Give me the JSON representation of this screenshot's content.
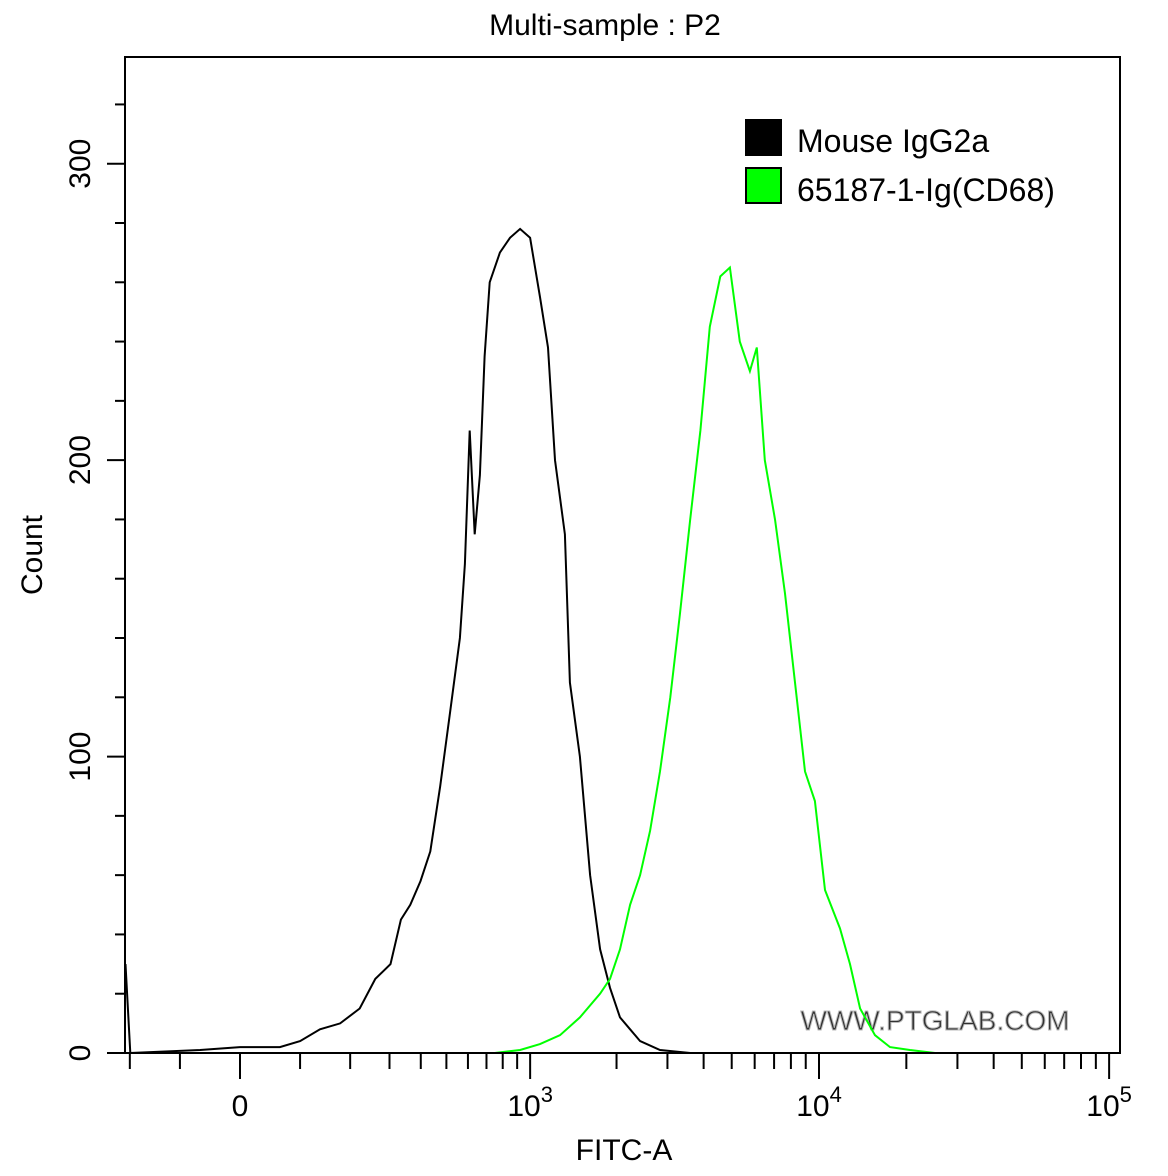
{
  "chart_data": {
    "type": "line",
    "title": "Multi-sample : P2",
    "xlabel": "FITC-A",
    "ylabel": "Count",
    "x_scale": "biexponential",
    "xlim": [
      -210,
      100000
    ],
    "ylim": [
      0,
      336
    ],
    "grid": false,
    "legend_position": "top-right",
    "x_ticks": [
      {
        "value": 0,
        "label": "0",
        "sup": ""
      },
      {
        "value": 1000,
        "label": "10",
        "sup": "3"
      },
      {
        "value": 10000,
        "label": "10",
        "sup": "4"
      },
      {
        "value": 100000,
        "label": "10",
        "sup": "5"
      }
    ],
    "x_minor_ticks": [
      -200,
      -100,
      100,
      200,
      300,
      400,
      500,
      600,
      700,
      800,
      900,
      2000,
      3000,
      4000,
      5000,
      6000,
      7000,
      8000,
      9000,
      20000,
      30000,
      40000,
      50000,
      60000,
      70000,
      80000,
      90000
    ],
    "y_ticks": [
      0,
      100,
      200,
      300
    ],
    "y_minor_ticks": [
      20,
      40,
      60,
      80,
      120,
      140,
      160,
      180,
      220,
      240,
      260,
      280,
      320
    ],
    "series": [
      {
        "name": "Mouse IgG2a",
        "color": "#000000",
        "points": [
          [
            -210,
            30
          ],
          [
            -199,
            0
          ],
          [
            -65,
            1
          ],
          [
            0,
            2
          ],
          [
            65,
            2
          ],
          [
            100,
            4
          ],
          [
            137,
            8
          ],
          [
            178,
            10
          ],
          [
            222,
            15
          ],
          [
            261,
            25
          ],
          [
            303,
            30
          ],
          [
            334,
            45
          ],
          [
            364,
            50
          ],
          [
            399,
            58
          ],
          [
            435,
            68
          ],
          [
            474,
            90
          ],
          [
            516,
            115
          ],
          [
            561,
            140
          ],
          [
            585,
            165
          ],
          [
            609,
            210
          ],
          [
            635,
            175
          ],
          [
            663,
            195
          ],
          [
            689,
            235
          ],
          [
            719,
            260
          ],
          [
            782,
            270
          ],
          [
            849,
            275
          ],
          [
            922,
            278
          ],
          [
            1000,
            275
          ],
          [
            1083,
            255
          ],
          [
            1155,
            238
          ],
          [
            1222,
            200
          ],
          [
            1323,
            175
          ],
          [
            1378,
            125
          ],
          [
            1493,
            100
          ],
          [
            1620,
            60
          ],
          [
            1754,
            35
          ],
          [
            1899,
            22
          ],
          [
            2056,
            12
          ],
          [
            2228,
            8
          ],
          [
            2414,
            4
          ],
          [
            2828,
            1
          ],
          [
            3596,
            0
          ]
        ]
      },
      {
        "name": "65187-1-Ig(CD68)",
        "color": "#00ff00",
        "points": [
          [
            750,
            0
          ],
          [
            922,
            1
          ],
          [
            1083,
            3
          ],
          [
            1272,
            6
          ],
          [
            1493,
            12
          ],
          [
            1754,
            20
          ],
          [
            1899,
            25
          ],
          [
            2056,
            35
          ],
          [
            2228,
            50
          ],
          [
            2414,
            60
          ],
          [
            2614,
            75
          ],
          [
            2828,
            95
          ],
          [
            3070,
            120
          ],
          [
            3313,
            148
          ],
          [
            3596,
            180
          ],
          [
            3899,
            210
          ],
          [
            4202,
            245
          ],
          [
            4565,
            262
          ],
          [
            4929,
            265
          ],
          [
            5333,
            240
          ],
          [
            5777,
            230
          ],
          [
            6100,
            238
          ],
          [
            6504,
            200
          ],
          [
            7050,
            180
          ],
          [
            7636,
            155
          ],
          [
            8262,
            125
          ],
          [
            8949,
            95
          ],
          [
            9676,
            85
          ],
          [
            10484,
            55
          ],
          [
            11817,
            42
          ],
          [
            12787,
            30
          ],
          [
            13857,
            15
          ],
          [
            15594,
            6
          ],
          [
            17574,
            2
          ],
          [
            20584,
            1
          ],
          [
            25109,
            0
          ]
        ]
      }
    ]
  },
  "watermark": "WWW.PTGLAB.COM"
}
